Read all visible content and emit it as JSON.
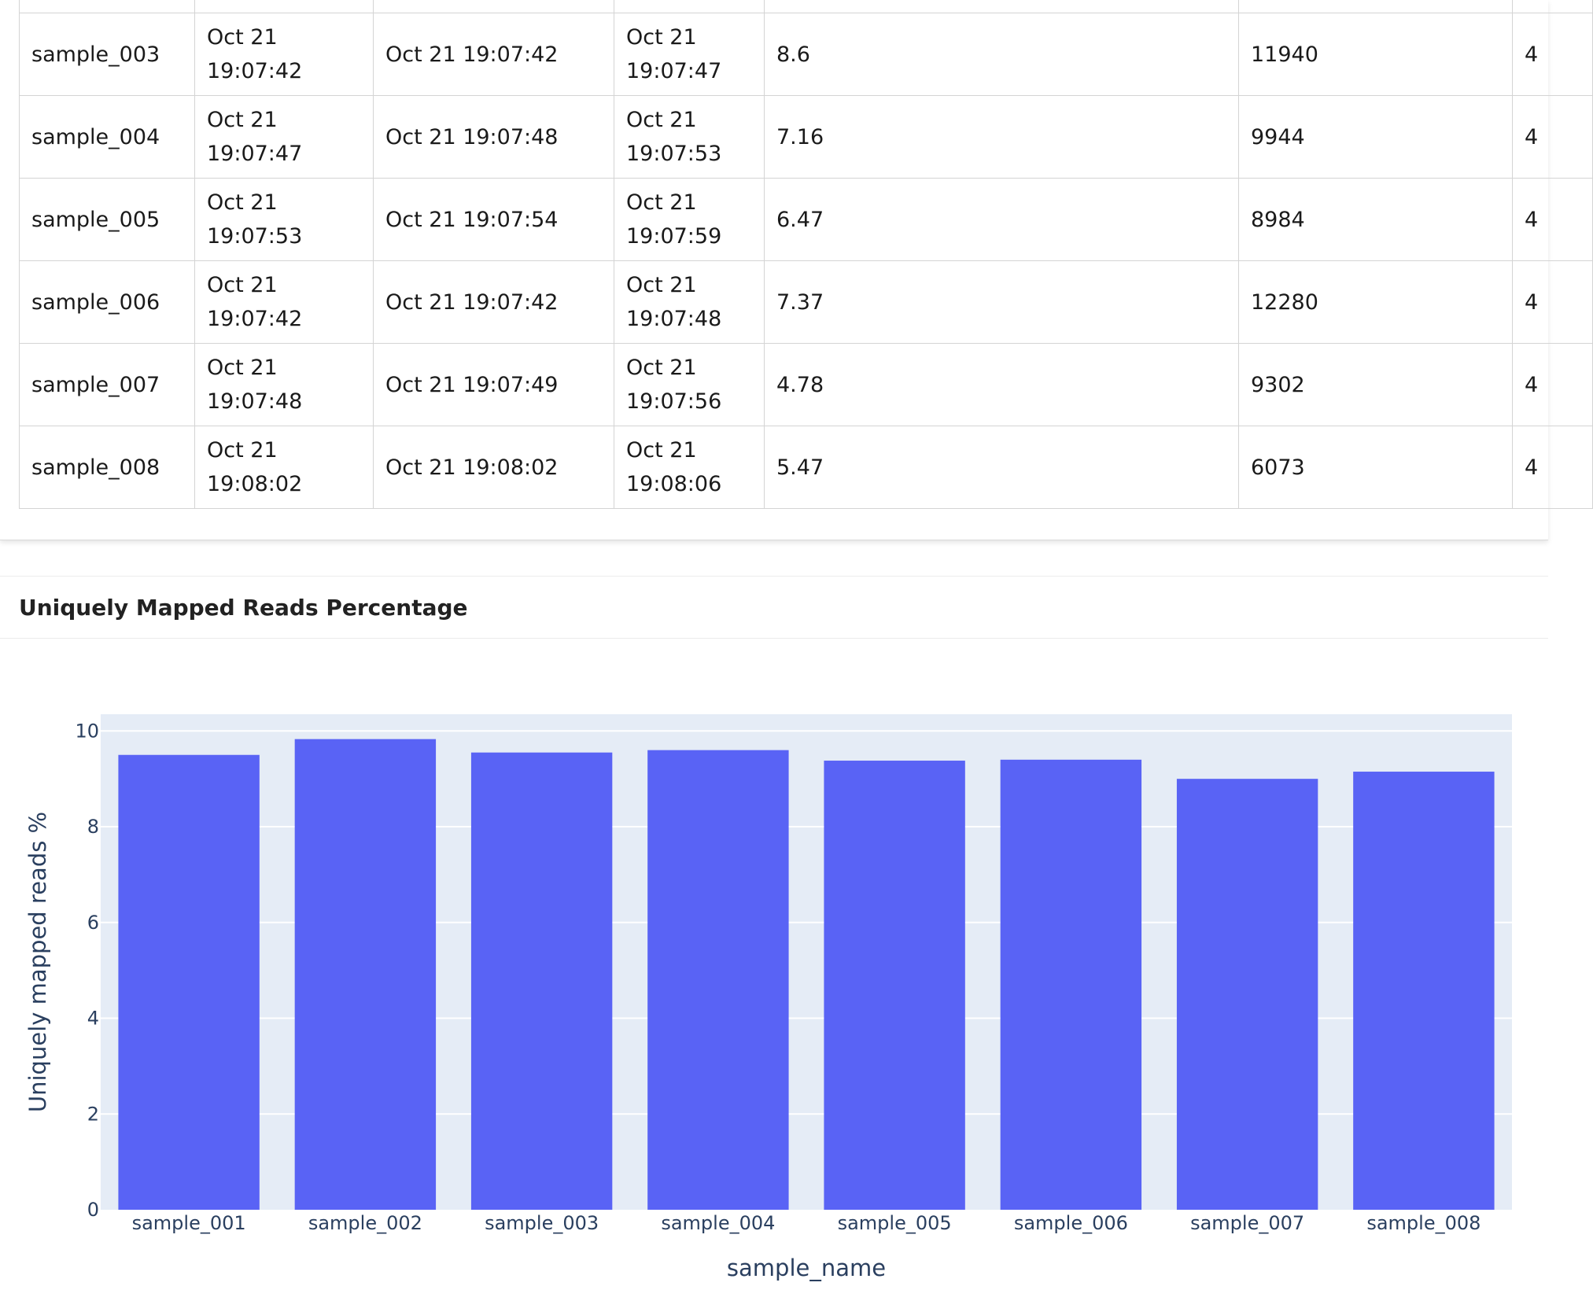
{
  "table": {
    "rows": [
      {
        "sample": "sample_003",
        "queued": "Oct 21 19:07:42",
        "started": "Oct 21 19:07:42",
        "finished": "Oct 21 19:07:47",
        "duration": "8.6",
        "value": "11940",
        "extra": "4"
      },
      {
        "sample": "sample_004",
        "queued": "Oct 21 19:07:47",
        "started": "Oct 21 19:07:48",
        "finished": "Oct 21 19:07:53",
        "duration": "7.16",
        "value": "9944",
        "extra": "4"
      },
      {
        "sample": "sample_005",
        "queued": "Oct 21 19:07:53",
        "started": "Oct 21 19:07:54",
        "finished": "Oct 21 19:07:59",
        "duration": "6.47",
        "value": "8984",
        "extra": "4"
      },
      {
        "sample": "sample_006",
        "queued": "Oct 21 19:07:42",
        "started": "Oct 21 19:07:42",
        "finished": "Oct 21 19:07:48",
        "duration": "7.37",
        "value": "12280",
        "extra": "4"
      },
      {
        "sample": "sample_007",
        "queued": "Oct 21 19:07:48",
        "started": "Oct 21 19:07:49",
        "finished": "Oct 21 19:07:56",
        "duration": "4.78",
        "value": "9302",
        "extra": "4"
      },
      {
        "sample": "sample_008",
        "queued": "Oct 21 19:08:02",
        "started": "Oct 21 19:08:02",
        "finished": "Oct 21 19:08:06",
        "duration": "5.47",
        "value": "6073",
        "extra": "4"
      }
    ]
  },
  "section": {
    "title": "Uniquely Mapped Reads Percentage"
  },
  "chart_data": {
    "type": "bar",
    "categories": [
      "sample_001",
      "sample_002",
      "sample_003",
      "sample_004",
      "sample_005",
      "sample_006",
      "sample_007",
      "sample_008"
    ],
    "values": [
      9.5,
      9.83,
      9.55,
      9.6,
      9.38,
      9.4,
      9.0,
      9.15
    ],
    "xlabel": "sample_name",
    "ylabel": "Uniquely mapped reads %",
    "ylim": [
      0,
      10.35
    ],
    "yticks": [
      "0",
      "2",
      "4",
      "6",
      "8",
      "10"
    ],
    "grid": true,
    "colors": {
      "bar": "#5963f5",
      "plot_bg": "#e5ecf6",
      "grid": "#ffffff",
      "text": "#2a3f5f"
    }
  }
}
